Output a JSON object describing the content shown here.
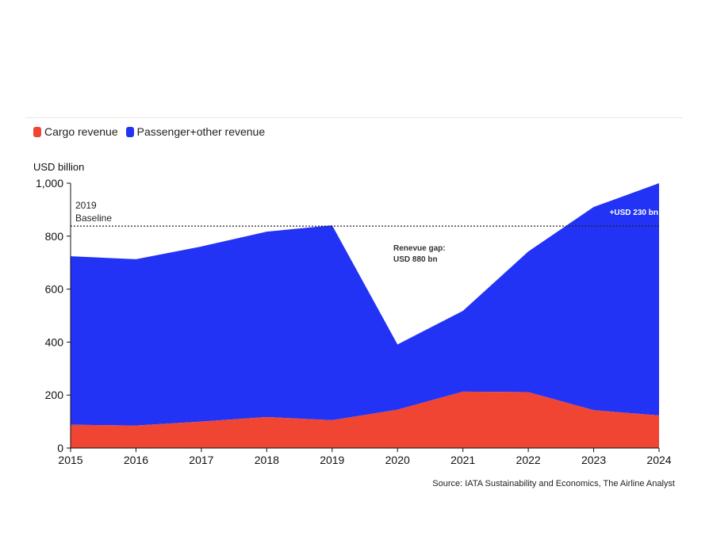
{
  "colors": {
    "cargo": "#f04533",
    "passenger": "#2233f5"
  },
  "legend": [
    {
      "label": "Cargo revenue",
      "color": "#f04533"
    },
    {
      "label": "Passenger+other revenue",
      "color": "#2233f5"
    }
  ],
  "source": "Source: IATA Sustainability and Economics, The Airline Analyst",
  "chart_data": {
    "type": "area",
    "stacked": true,
    "categories": [
      "2015",
      "2016",
      "2017",
      "2018",
      "2019",
      "2020",
      "2021",
      "2022",
      "2023",
      "2024"
    ],
    "series": [
      {
        "name": "Cargo revenue",
        "values": [
          88,
          85,
          100,
          117,
          105,
          145,
          213,
          211,
          143,
          123
        ]
      },
      {
        "name": "Passenger+other revenue",
        "values": [
          636,
          628,
          661,
          700,
          736,
          246,
          305,
          531,
          767,
          877
        ]
      }
    ],
    "ylabel": "USD billion",
    "ylim": [
      0,
      1000
    ],
    "yticks": [
      "0",
      "200",
      "400",
      "600",
      "800",
      "1,000"
    ],
    "grid": false,
    "baseline": {
      "value": 838,
      "label_line1": "2019",
      "label_line2": "Baseline"
    },
    "annotations": [
      {
        "line1": "Renevue gap:",
        "line2": "USD 880 bn"
      },
      {
        "text": "+USD 230 bn"
      }
    ]
  }
}
